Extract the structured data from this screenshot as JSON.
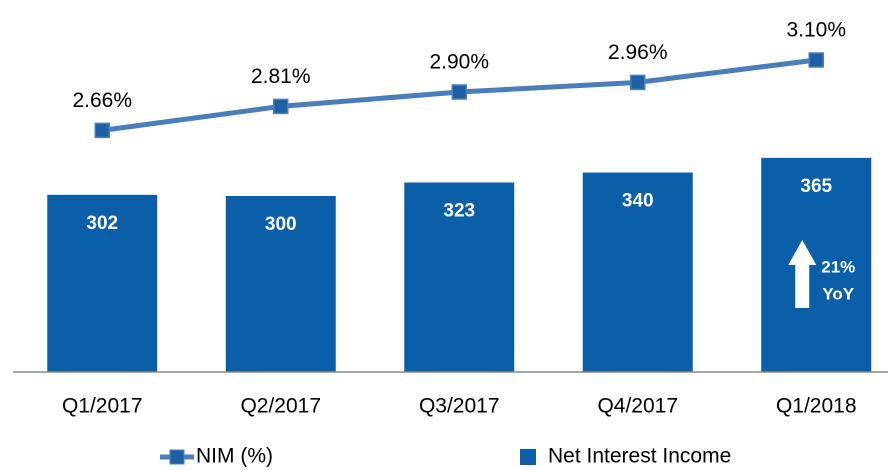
{
  "chart_data": {
    "type": "bar_line",
    "categories": [
      "Q1/2017",
      "Q2/2017",
      "Q3/2017",
      "Q4/2017",
      "Q1/2018"
    ],
    "series": [
      {
        "name": "NIM (%)",
        "type": "line",
        "axis": "y2",
        "color": "#4a7ebb",
        "marker_color": "#1f5fa6",
        "values": [
          2.66,
          2.81,
          2.9,
          2.96,
          3.1
        ],
        "value_labels": [
          "2.66%",
          "2.81%",
          "2.90%",
          "2.96%",
          "3.10%"
        ]
      },
      {
        "name": "Net Interest Income",
        "type": "bar",
        "color": "#0b5ea8",
        "values": [
          302,
          300,
          323,
          340,
          365
        ]
      }
    ],
    "ylim": [
      0,
      600
    ],
    "y2lim": [
      1.15,
      3.35
    ],
    "annotation": [
      "21%",
      "YoY"
    ],
    "legend": "bottom"
  }
}
